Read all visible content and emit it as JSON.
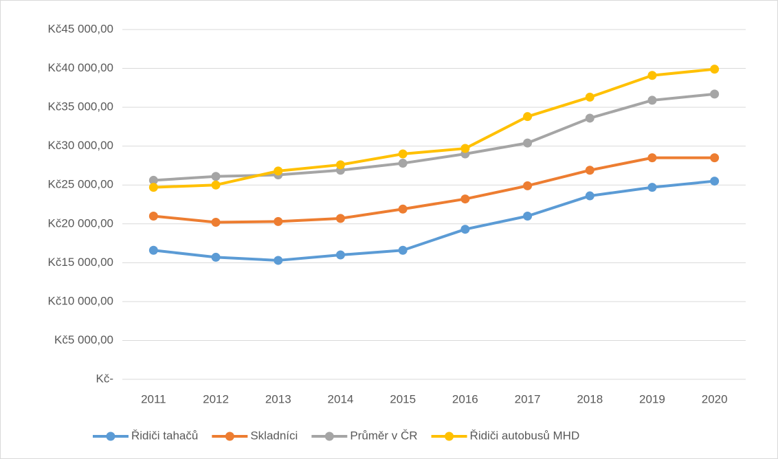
{
  "chart_data": {
    "type": "line",
    "categories": [
      "2011",
      "2012",
      "2013",
      "2014",
      "2015",
      "2016",
      "2017",
      "2018",
      "2019",
      "2020"
    ],
    "series": [
      {
        "name": "Řidiči tahačů",
        "color": "#5b9bd5",
        "values": [
          16600,
          15700,
          15300,
          16000,
          16600,
          19300,
          21000,
          23600,
          24700,
          25500
        ]
      },
      {
        "name": "Skladníci",
        "color": "#ed7d31",
        "values": [
          21000,
          20200,
          20300,
          20700,
          21900,
          23200,
          24900,
          26900,
          28500,
          28500
        ]
      },
      {
        "name": "Průměr v ČR",
        "color": "#a5a5a5",
        "values": [
          25600,
          26100,
          26300,
          26900,
          27800,
          29000,
          30400,
          33600,
          35900,
          36700
        ]
      },
      {
        "name": "Řidiči autobusů MHD",
        "color": "#ffc000",
        "values": [
          24700,
          25000,
          26800,
          27600,
          29000,
          29700,
          33800,
          36300,
          39100,
          39900
        ]
      }
    ],
    "ylim": [
      0,
      45000
    ],
    "yticks": [
      {
        "value": 0,
        "label": "Kč-"
      },
      {
        "value": 5000,
        "label": "Kč5 000,00"
      },
      {
        "value": 10000,
        "label": "Kč10 000,00"
      },
      {
        "value": 15000,
        "label": "Kč15 000,00"
      },
      {
        "value": 20000,
        "label": "Kč20 000,00"
      },
      {
        "value": 25000,
        "label": "Kč25 000,00"
      },
      {
        "value": 30000,
        "label": "Kč30 000,00"
      },
      {
        "value": 35000,
        "label": "Kč35 000,00"
      },
      {
        "value": 40000,
        "label": "Kč40 000,00"
      },
      {
        "value": 45000,
        "label": "Kč45 000,00"
      }
    ],
    "grid": true,
    "legend": "bottom"
  }
}
